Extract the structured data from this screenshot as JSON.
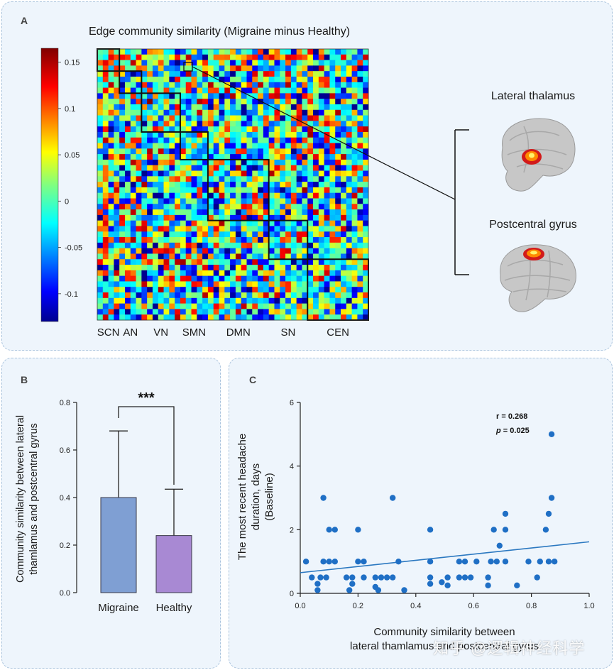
{
  "panels": {
    "a": "A",
    "b": "B",
    "c": "C"
  },
  "chart_data": [
    {
      "type": "heatmap",
      "panel": "A",
      "title": "Edge community similarity (Migraine minus Healthy)",
      "networks": [
        "SCN",
        "AN",
        "VN",
        "SMN",
        "DMN",
        "SN",
        "CEN"
      ],
      "network_sizes": [
        4,
        4,
        7,
        5,
        11,
        7,
        11
      ],
      "colorbar": {
        "min": -0.13,
        "max": 0.165,
        "ticks": [
          0.15,
          0.1,
          0.05,
          0,
          -0.05,
          -0.1
        ],
        "tick_labels": [
          "0.15",
          "0.1",
          "0.05",
          "0",
          "-0.05",
          "-0.1"
        ]
      },
      "highlighted_edge": {
        "region_a": "Lateral thalamus",
        "region_b": "Postcentral gyrus"
      }
    },
    {
      "type": "bar",
      "panel": "B",
      "categories": [
        "Migraine",
        "Healthy"
      ],
      "values": [
        0.4,
        0.24
      ],
      "error_upper": [
        0.68,
        0.435
      ],
      "colors": [
        "#7f9fd3",
        "#a889d3"
      ],
      "ylabel_lines": [
        "Community similarity between lateral",
        "thamlamus and postcentral gyrus"
      ],
      "ylim": [
        0,
        0.8
      ],
      "yticks": [
        0.0,
        0.2,
        0.4,
        0.6,
        0.8
      ],
      "ytick_labels": [
        "0.0",
        "0.2",
        "0.4",
        "0.6",
        "0.8"
      ],
      "significance": "***"
    },
    {
      "type": "scatter",
      "panel": "C",
      "xlabel_lines": [
        "Community similarity between",
        "lateral thamlamus and postcentral gyrus"
      ],
      "ylabel_lines": [
        "The most recent headache",
        "duration, days",
        "(Baseline)"
      ],
      "xlim": [
        0,
        1.0
      ],
      "ylim": [
        0,
        6
      ],
      "xticks": [
        0.0,
        0.2,
        0.4,
        0.6,
        0.8,
        1.0
      ],
      "xtick_labels": [
        "0.0",
        "0.2",
        "0.4",
        "0.6",
        "0.8",
        "1.0"
      ],
      "yticks": [
        0,
        2,
        4,
        6
      ],
      "ytick_labels": [
        "0",
        "2",
        "4",
        "6"
      ],
      "stat_r": "r = 0.268",
      "stat_p_label": "p",
      "stat_p_value": " = 0.025",
      "fit_line": {
        "x": [
          0.0,
          1.0
        ],
        "y": [
          0.65,
          1.62
        ]
      },
      "point_color": "#1f6fc5",
      "points": [
        [
          0.02,
          1.0
        ],
        [
          0.04,
          0.5
        ],
        [
          0.06,
          0.3
        ],
        [
          0.06,
          0.1
        ],
        [
          0.07,
          0.5
        ],
        [
          0.08,
          1.0
        ],
        [
          0.08,
          3.0
        ],
        [
          0.09,
          0.5
        ],
        [
          0.1,
          1.0
        ],
        [
          0.1,
          2.0
        ],
        [
          0.12,
          2.0
        ],
        [
          0.12,
          1.0
        ],
        [
          0.16,
          0.5
        ],
        [
          0.17,
          0.1
        ],
        [
          0.18,
          0.5
        ],
        [
          0.18,
          0.3
        ],
        [
          0.2,
          1.0
        ],
        [
          0.2,
          2.0
        ],
        [
          0.22,
          1.0
        ],
        [
          0.22,
          0.5
        ],
        [
          0.26,
          0.5
        ],
        [
          0.26,
          0.2
        ],
        [
          0.27,
          0.1
        ],
        [
          0.28,
          0.5
        ],
        [
          0.3,
          0.5
        ],
        [
          0.32,
          0.5
        ],
        [
          0.32,
          3.0
        ],
        [
          0.34,
          1.0
        ],
        [
          0.36,
          0.1
        ],
        [
          0.45,
          2.0
        ],
        [
          0.45,
          1.0
        ],
        [
          0.45,
          0.5
        ],
        [
          0.45,
          0.3
        ],
        [
          0.49,
          0.35
        ],
        [
          0.51,
          0.25
        ],
        [
          0.51,
          0.5
        ],
        [
          0.55,
          0.5
        ],
        [
          0.55,
          1.0
        ],
        [
          0.57,
          1.0
        ],
        [
          0.57,
          0.5
        ],
        [
          0.59,
          0.5
        ],
        [
          0.61,
          1.0
        ],
        [
          0.65,
          0.5
        ],
        [
          0.65,
          0.25
        ],
        [
          0.66,
          1.0
        ],
        [
          0.67,
          2.0
        ],
        [
          0.68,
          1.0
        ],
        [
          0.69,
          1.5
        ],
        [
          0.71,
          2.5
        ],
        [
          0.71,
          2.0
        ],
        [
          0.71,
          1.0
        ],
        [
          0.75,
          0.25
        ],
        [
          0.79,
          1.0
        ],
        [
          0.82,
          0.5
        ],
        [
          0.83,
          1.0
        ],
        [
          0.85,
          2.0
        ],
        [
          0.86,
          1.0
        ],
        [
          0.86,
          2.5
        ],
        [
          0.87,
          3.0
        ],
        [
          0.87,
          5.0
        ],
        [
          0.88,
          1.0
        ]
      ]
    }
  ],
  "watermark": "知乎 @逻辑神经科学"
}
